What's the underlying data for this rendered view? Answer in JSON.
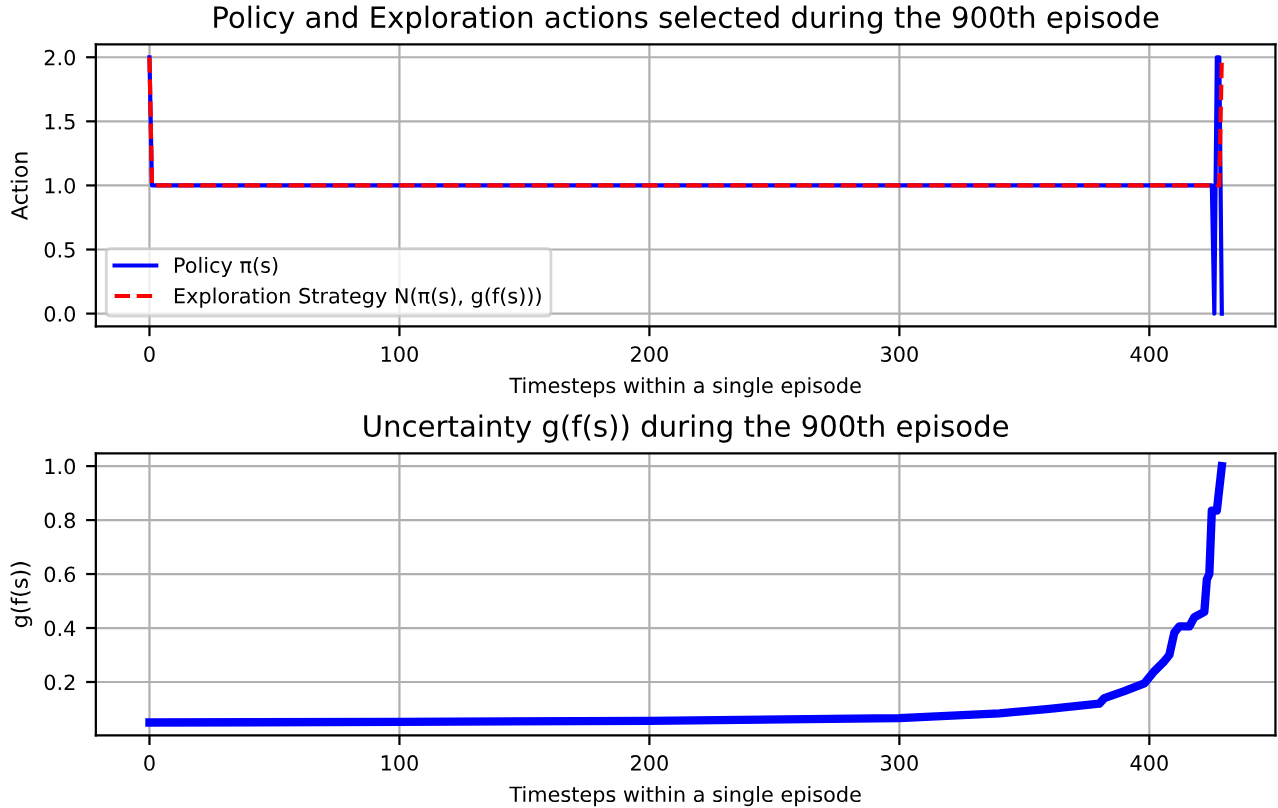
{
  "chart_data": [
    {
      "type": "line",
      "title": "Policy and Exploration actions selected during the 900th episode",
      "xlabel": "Timesteps within a single episode",
      "ylabel": "Action",
      "xlim": [
        -21.45,
        450.45
      ],
      "ylim": [
        -0.1,
        2.1
      ],
      "xticks": [
        0,
        100,
        200,
        300,
        400
      ],
      "yticks": [
        {
          "value": 0,
          "label": "0.0"
        },
        {
          "value": 0.5,
          "label": "0.5"
        },
        {
          "value": 1,
          "label": "1.0"
        },
        {
          "value": 1.5,
          "label": "1.5"
        },
        {
          "value": 2,
          "label": "2.0"
        }
      ],
      "grid": true,
      "legend": "bottom left",
      "series": [
        {
          "name": "Policy π(s)",
          "color": "#0000ff",
          "line_style": "solid",
          "x": [
            0,
            1,
            425,
            426,
            427,
            428,
            429
          ],
          "values": [
            2,
            1,
            1,
            0,
            2,
            2,
            0
          ]
        },
        {
          "name": "Exploration Strategy N(π(s), g(f(s)))",
          "color": "#ff0000",
          "line_style": "dashed",
          "x": [
            0,
            1,
            428,
            429
          ],
          "values": [
            2,
            1,
            1,
            2
          ]
        }
      ]
    },
    {
      "type": "line",
      "title": "Uncertainty g(f(s)) during the 900th episode",
      "xlabel": "Timesteps within a single episode",
      "ylabel": "g(f(s))",
      "xlim": [
        -21.45,
        450.45
      ],
      "ylim": [
        0.0025,
        1.0475
      ],
      "xticks": [
        0,
        100,
        200,
        300,
        400
      ],
      "yticks": [
        0.2,
        0.4,
        0.6,
        0.8,
        {
          "value": 1,
          "label": "1.0"
        }
      ],
      "grid": true,
      "series": [
        {
          "color": "#0000ff",
          "line_style": "solid",
          "x": [
            0,
            100,
            200,
            300,
            340,
            360,
            380,
            382,
            390,
            398,
            402,
            406,
            408,
            410,
            412,
            416,
            418,
            422,
            423,
            424,
            425,
            427,
            429
          ],
          "values": [
            0.05,
            0.052,
            0.056,
            0.066,
            0.084,
            0.1,
            0.12,
            0.14,
            0.166,
            0.195,
            0.24,
            0.277,
            0.3,
            0.383,
            0.406,
            0.406,
            0.44,
            0.46,
            0.58,
            0.6,
            0.835,
            0.835,
            1.0
          ]
        }
      ]
    }
  ]
}
